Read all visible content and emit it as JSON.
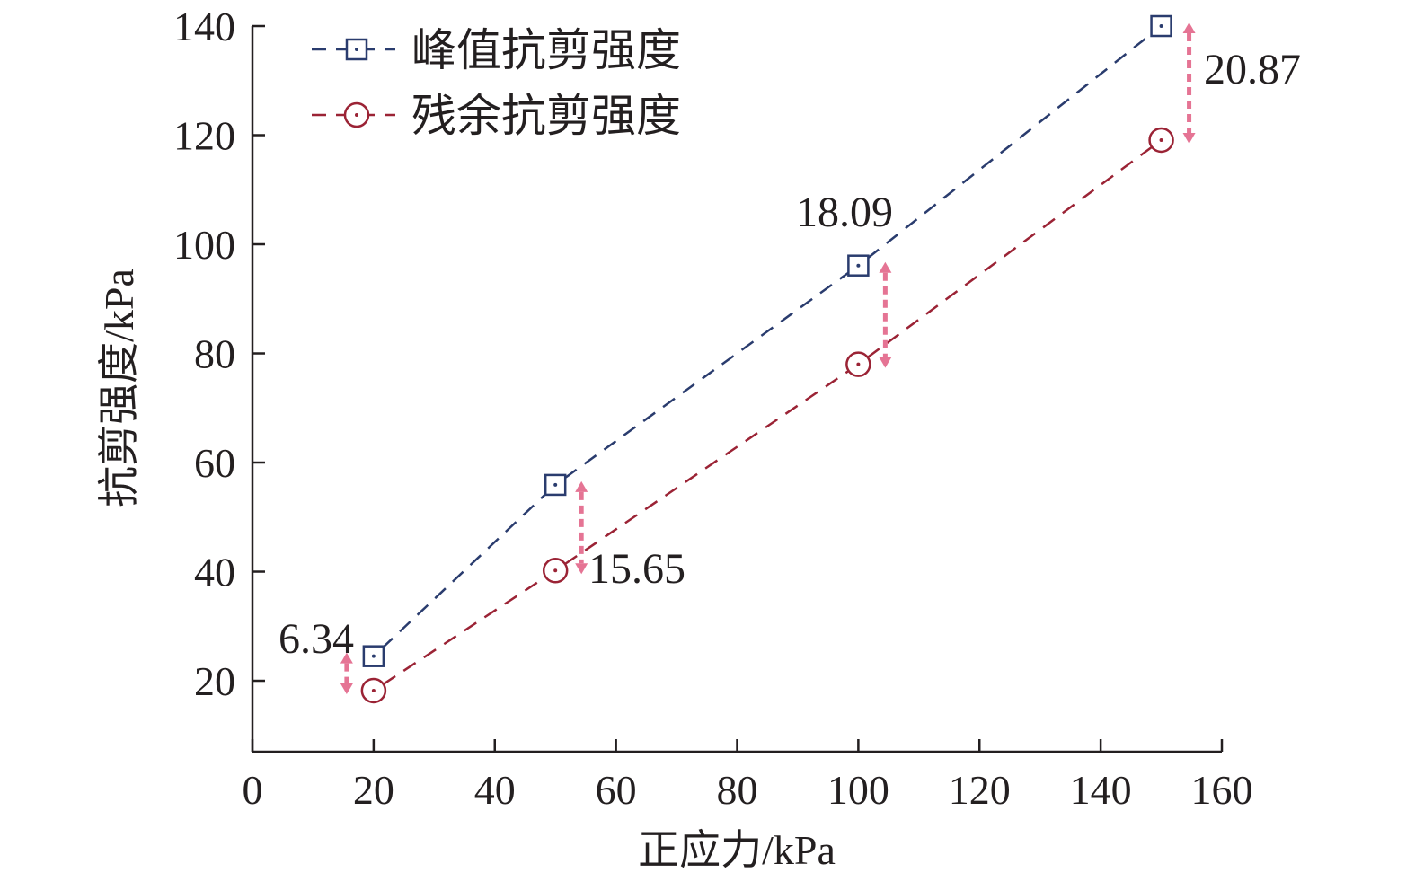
{
  "chart_data": {
    "type": "line",
    "xlabel": "正应力/kPa",
    "ylabel": "抗剪强度/kPa",
    "xlim": [
      0,
      160
    ],
    "ylim": [
      7,
      140
    ],
    "xticks": [
      0,
      20,
      40,
      60,
      80,
      100,
      120,
      140,
      160
    ],
    "yticks": [
      20,
      40,
      60,
      80,
      100,
      120,
      140
    ],
    "grid": false,
    "legend_position": "top-left",
    "x": [
      20,
      50,
      100,
      150
    ],
    "series": [
      {
        "name": "峰值抗剪强度",
        "values": [
          24.5,
          55.9,
          96.1,
          140.0
        ],
        "color": "#2a3c6e",
        "marker": "square-dot",
        "line_style": "dashed"
      },
      {
        "name": "残余抗剪强度",
        "values": [
          18.2,
          40.2,
          78.0,
          119.1
        ],
        "color": "#9b2335",
        "marker": "circle-dot",
        "line_style": "dashed"
      }
    ],
    "annotations": [
      {
        "text": "6.34",
        "x": 20,
        "from": 24.5,
        "to": 18.2
      },
      {
        "text": "15.65",
        "x": 50,
        "from": 55.9,
        "to": 40.2
      },
      {
        "text": "18.09",
        "x": 100,
        "from": 96.1,
        "to": 78.0
      },
      {
        "text": "20.87",
        "x": 150,
        "from": 140.0,
        "to": 119.1
      }
    ],
    "annotation_color": "#e57494"
  }
}
